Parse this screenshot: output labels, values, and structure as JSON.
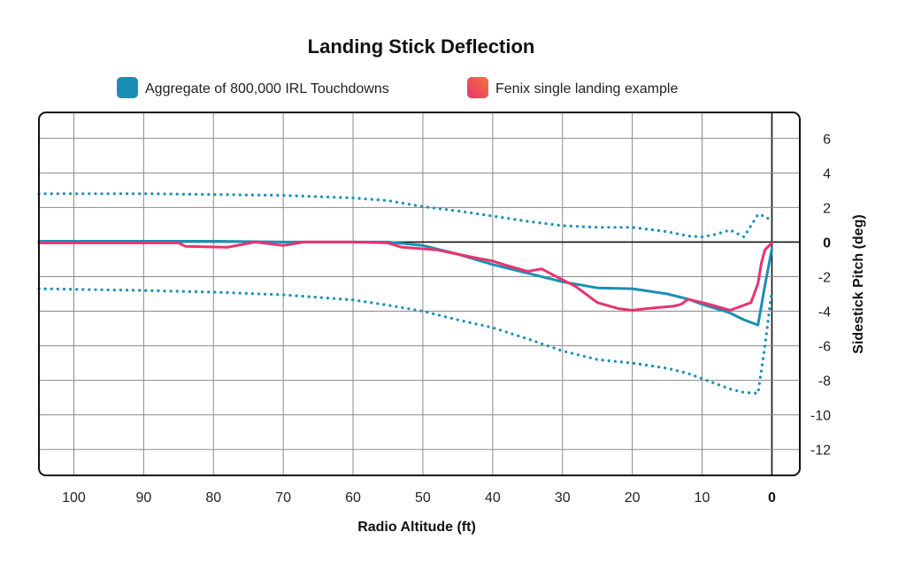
{
  "chart_data": {
    "type": "line",
    "title": "Landing Stick Deflection",
    "xlabel": "Radio Altitude (ft)",
    "ylabel": "Sidestick Pitch (deg)",
    "xlim": [
      105,
      -4
    ],
    "ylim": [
      -13.5,
      7.5
    ],
    "x_reversed": true,
    "grid": true,
    "legend_position": "top",
    "x_ticks": [
      100,
      90,
      80,
      70,
      60,
      50,
      40,
      30,
      20,
      10,
      0
    ],
    "x_tick_labels": [
      "100",
      "90",
      "80",
      "70",
      "60",
      "50",
      "40",
      "30",
      "20",
      "10",
      "0"
    ],
    "y_ticks": [
      6,
      4,
      2,
      0,
      -2,
      -4,
      -6,
      -8,
      -10,
      -12
    ],
    "y_tick_labels": [
      "6",
      "4",
      "2",
      "0",
      "-2",
      "-4",
      "-6",
      "-8",
      "-10",
      "-12"
    ],
    "colors": {
      "aggregate": "#1a8fb5",
      "fenix": "#e8336f",
      "fenix_alt": "#f4743b",
      "grid": "#8a8a8a",
      "frame": "#111111"
    },
    "legend": [
      {
        "name": "Aggregate of 800,000 IRL Touchdowns",
        "color": "#1a8fb5"
      },
      {
        "name": "Fenix single landing example",
        "color": "#e8336f"
      }
    ],
    "series": [
      {
        "name": "Aggregate of 800,000 IRL Touchdowns",
        "style": "solid",
        "x": [
          105,
          90,
          80,
          70,
          60,
          55,
          50,
          45,
          40,
          35,
          30,
          25,
          20,
          15,
          12,
          10,
          8,
          6,
          4,
          2,
          1,
          0
        ],
        "y": [
          0.05,
          0.05,
          0.05,
          0.0,
          0.0,
          0.0,
          -0.2,
          -0.7,
          -1.3,
          -1.8,
          -2.3,
          -2.65,
          -2.7,
          -3.0,
          -3.3,
          -3.6,
          -3.85,
          -4.1,
          -4.5,
          -4.8,
          -2.5,
          -0.4
        ]
      },
      {
        "name": "Upper band",
        "style": "dotted",
        "x": [
          105,
          90,
          80,
          70,
          60,
          55,
          50,
          45,
          40,
          35,
          30,
          25,
          20,
          15,
          12,
          10,
          8,
          6,
          4,
          2,
          1,
          0
        ],
        "y": [
          2.8,
          2.8,
          2.75,
          2.7,
          2.55,
          2.4,
          2.05,
          1.8,
          1.5,
          1.2,
          0.95,
          0.85,
          0.85,
          0.6,
          0.35,
          0.3,
          0.45,
          0.7,
          0.3,
          1.6,
          1.5,
          1.2
        ]
      },
      {
        "name": "Lower band",
        "style": "dotted",
        "x": [
          105,
          90,
          80,
          70,
          60,
          55,
          50,
          45,
          40,
          35,
          30,
          25,
          20,
          15,
          12,
          10,
          8,
          6,
          4,
          2,
          1,
          0
        ],
        "y": [
          -2.7,
          -2.8,
          -2.9,
          -3.05,
          -3.35,
          -3.65,
          -4.0,
          -4.5,
          -4.95,
          -5.6,
          -6.3,
          -6.8,
          -7.0,
          -7.3,
          -7.6,
          -7.9,
          -8.2,
          -8.5,
          -8.7,
          -8.75,
          -6.0,
          -2.8
        ]
      },
      {
        "name": "Fenix single landing example",
        "style": "solid",
        "x": [
          105,
          85,
          84,
          78,
          74,
          70,
          67,
          60,
          55,
          53,
          48,
          45,
          42,
          40,
          38,
          35,
          33,
          28,
          25,
          22,
          20,
          18,
          14,
          13,
          12,
          9,
          6,
          3,
          2,
          1.5,
          1,
          0
        ],
        "y": [
          -0.05,
          -0.05,
          -0.25,
          -0.3,
          0.0,
          -0.2,
          0.0,
          0.0,
          -0.05,
          -0.3,
          -0.45,
          -0.7,
          -0.95,
          -1.1,
          -1.35,
          -1.7,
          -1.55,
          -2.6,
          -3.5,
          -3.85,
          -3.95,
          -3.85,
          -3.7,
          -3.6,
          -3.3,
          -3.6,
          -3.95,
          -3.5,
          -2.4,
          -1.2,
          -0.45,
          -0.05
        ]
      }
    ]
  }
}
